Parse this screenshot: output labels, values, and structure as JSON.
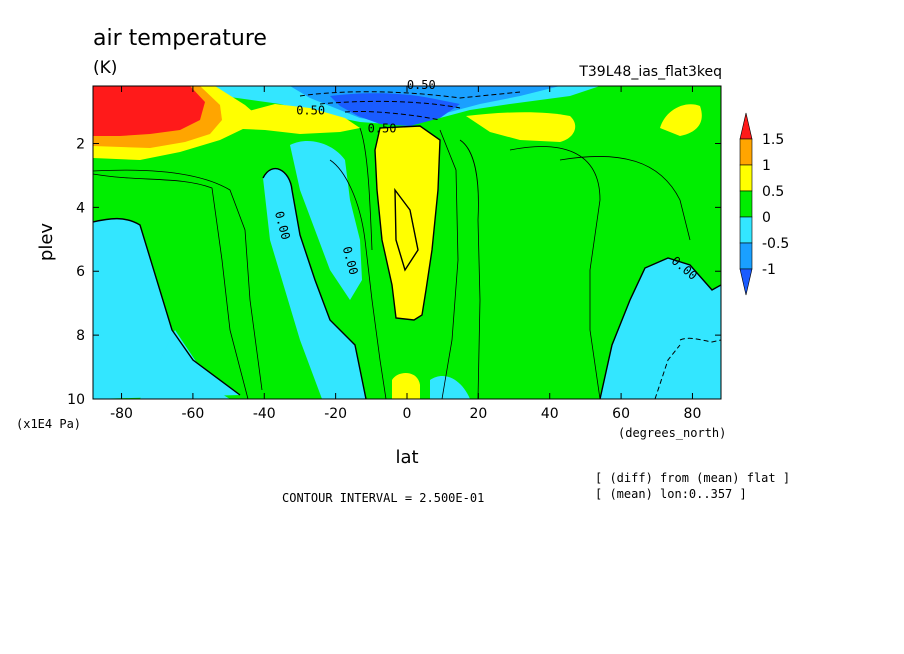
{
  "chart_data": {
    "type": "heatmap",
    "title": "air temperature",
    "units": "(K)",
    "run_label": "T39L48_ias_flat3keq",
    "xlabel": "lat",
    "x_units": "(degrees_north)",
    "ylabel": "plev",
    "y_units": "(x1E4 Pa)",
    "xlim": [
      -88,
      88
    ],
    "ylim": [
      10,
      0.2
    ],
    "x_ticks": [
      -80,
      -60,
      -40,
      -20,
      0,
      20,
      40,
      60,
      80
    ],
    "x_tick_labels": [
      "-80",
      "-60",
      "-40",
      "-20",
      "0",
      "20",
      "40",
      "60",
      "80"
    ],
    "y_ticks": [
      2,
      4,
      6,
      8,
      10
    ],
    "y_tick_labels": [
      "2",
      "4",
      "6",
      "8",
      "10"
    ],
    "contour_interval": "CONTOUR INTERVAL = 2.500E-01",
    "notes": [
      "[ (diff) from (mean) flat ]",
      "[ (mean) lon:0..357 ]"
    ],
    "colorbar": {
      "levels": [
        -1,
        -0.5,
        0,
        0.5,
        1,
        1.5
      ],
      "labels": [
        "-1",
        "-0.5",
        "0",
        "0.5",
        "1",
        "1.5"
      ],
      "bins": [
        {
          "lo": null,
          "hi": -1,
          "color": "#1a5cff"
        },
        {
          "lo": -1,
          "hi": -0.5,
          "color": "#1aa0ff"
        },
        {
          "lo": -0.5,
          "hi": 0,
          "color": "#33e6ff"
        },
        {
          "lo": 0,
          "hi": 0.5,
          "color": "#00ee00"
        },
        {
          "lo": 0.5,
          "hi": 1,
          "color": "#ffff00"
        },
        {
          "lo": 1,
          "hi": 1.5,
          "color": "#ffa500"
        },
        {
          "lo": 1.5,
          "hi": null,
          "color": "#ff1a1a"
        }
      ]
    },
    "contour_labels": [
      {
        "text": "0.50",
        "lat": -27,
        "plev": 1.1
      },
      {
        "text": "0.50",
        "lat": -7,
        "plev": 1.65
      },
      {
        "text": "0.50",
        "lat": 4,
        "plev": 0.3
      },
      {
        "text": "0.00",
        "lat": -36,
        "plev": 4.6
      },
      {
        "text": "0.00",
        "lat": -17,
        "plev": 5.7
      },
      {
        "text": "0.00",
        "lat": 77,
        "plev": 6.0
      }
    ],
    "regions": [
      {
        "value": 1.7,
        "description": "warm maximum near -88..-60 lat, top levels"
      },
      {
        "value": -1.2,
        "description": "cold minimum near -10..25 lat, top levels"
      },
      {
        "value": 0.6,
        "description": "equatorial warm tongue, lat -10..10, plev 1.5..9"
      },
      {
        "value": -0.3,
        "description": "cool column lat -40..-15 and poleward of 55N"
      }
    ]
  }
}
